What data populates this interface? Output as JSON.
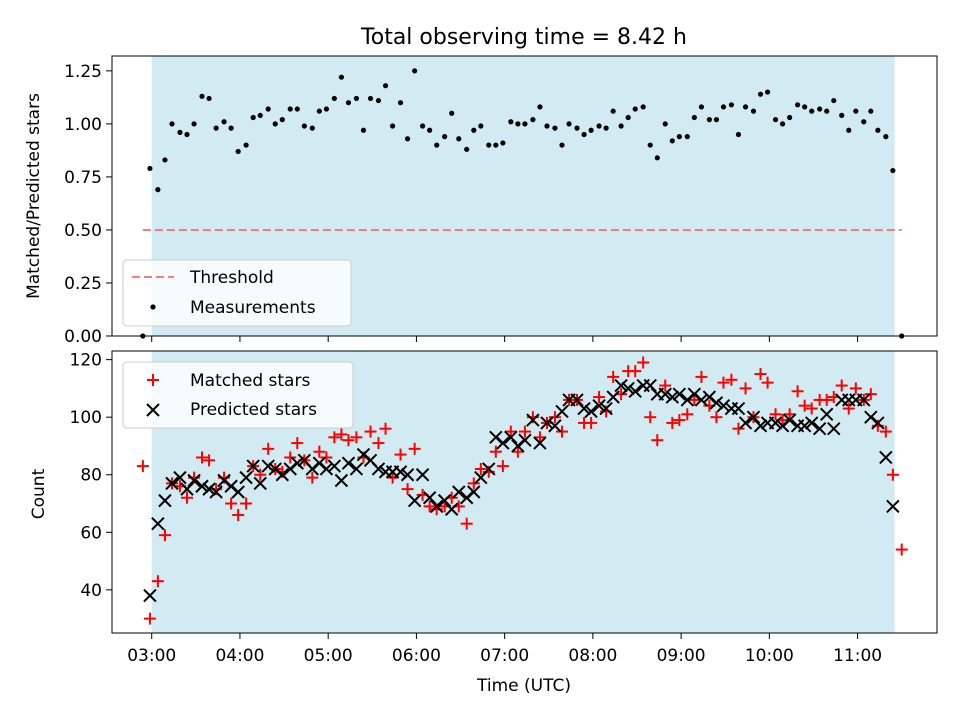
{
  "chart_data": [
    {
      "type": "scatter",
      "title": "Total observing time = 8.42 h",
      "ylabel": "Matched/Predicted stars",
      "xlabel": "",
      "xlim": [
        2.55,
        11.9
      ],
      "ylim": [
        0,
        1.32
      ],
      "yticks": [
        0.0,
        0.25,
        0.5,
        0.75,
        1.0,
        1.25
      ],
      "ytick_labels": [
        "0.00",
        "0.25",
        "0.50",
        "0.75",
        "1.00",
        "1.25"
      ],
      "observing_window": [
        3.0,
        11.42
      ],
      "legend_position": "lower-left",
      "threshold": {
        "name": "Threshold",
        "y": 0.5,
        "x_range": [
          2.9,
          11.5
        ],
        "color": "#f08080"
      },
      "series": [
        {
          "name": "Measurements",
          "marker": "dot",
          "color": "#000000",
          "x": [
            2.9,
            2.98,
            3.07,
            3.15,
            3.23,
            3.32,
            3.4,
            3.48,
            3.57,
            3.65,
            3.73,
            3.82,
            3.9,
            3.98,
            4.07,
            4.15,
            4.23,
            4.32,
            4.4,
            4.48,
            4.57,
            4.65,
            4.73,
            4.82,
            4.9,
            4.98,
            5.07,
            5.15,
            5.23,
            5.32,
            5.4,
            5.48,
            5.57,
            5.65,
            5.73,
            5.82,
            5.9,
            5.98,
            6.07,
            6.15,
            6.23,
            6.32,
            6.4,
            6.48,
            6.57,
            6.65,
            6.73,
            6.82,
            6.9,
            6.98,
            7.07,
            7.15,
            7.23,
            7.32,
            7.4,
            7.48,
            7.57,
            7.65,
            7.73,
            7.82,
            7.9,
            7.98,
            8.07,
            8.15,
            8.23,
            8.32,
            8.4,
            8.48,
            8.57,
            8.65,
            8.73,
            8.82,
            8.9,
            8.98,
            9.07,
            9.15,
            9.23,
            9.32,
            9.4,
            9.48,
            9.57,
            9.65,
            9.73,
            9.82,
            9.9,
            9.98,
            10.07,
            10.15,
            10.23,
            10.32,
            10.4,
            10.48,
            10.57,
            10.65,
            10.73,
            10.82,
            10.9,
            10.98,
            11.07,
            11.15,
            11.23,
            11.32,
            11.4,
            11.5
          ],
          "y": [
            0.0,
            0.79,
            0.69,
            0.83,
            1.0,
            0.96,
            0.95,
            1.0,
            1.13,
            1.12,
            0.98,
            1.01,
            0.98,
            0.87,
            0.9,
            1.03,
            1.04,
            1.07,
            1.0,
            1.02,
            1.07,
            1.07,
            0.99,
            0.98,
            1.06,
            1.07,
            1.12,
            1.22,
            1.1,
            1.12,
            0.97,
            1.12,
            1.11,
            1.18,
            0.99,
            1.1,
            0.93,
            1.25,
            0.99,
            0.97,
            0.9,
            0.94,
            1.05,
            0.93,
            0.88,
            0.97,
            0.99,
            0.9,
            0.9,
            0.91,
            1.01,
            1.0,
            1.0,
            1.02,
            1.08,
            0.99,
            0.98,
            0.9,
            1.0,
            0.98,
            0.95,
            0.97,
            0.99,
            0.98,
            1.06,
            0.99,
            1.03,
            1.07,
            1.08,
            0.9,
            0.84,
            1.0,
            0.92,
            0.94,
            0.94,
            1.03,
            1.08,
            1.02,
            1.02,
            1.08,
            1.09,
            0.95,
            1.08,
            1.06,
            1.14,
            1.15,
            1.02,
            1.0,
            1.03,
            1.09,
            1.08,
            1.06,
            1.07,
            1.06,
            1.11,
            1.04,
            0.97,
            1.06,
            1.01,
            1.06,
            0.97,
            0.94,
            0.78,
            0.0
          ]
        }
      ]
    },
    {
      "type": "scatter",
      "title": "",
      "xlabel": "Time (UTC)",
      "ylabel": "Count",
      "xlim": [
        2.55,
        11.9
      ],
      "ylim": [
        25,
        123
      ],
      "yticks": [
        40,
        60,
        80,
        100,
        120
      ],
      "ytick_labels": [
        "40",
        "60",
        "80",
        "100",
        "120"
      ],
      "xticks": [
        3,
        4,
        5,
        6,
        7,
        8,
        9,
        10,
        11
      ],
      "xtick_labels": [
        "03:00",
        "04:00",
        "05:00",
        "06:00",
        "07:00",
        "08:00",
        "09:00",
        "10:00",
        "11:00"
      ],
      "observing_window": [
        3.0,
        11.42
      ],
      "legend_position": "upper-left",
      "series": [
        {
          "name": "Matched stars",
          "marker": "plus",
          "color": "#ff0000",
          "x": [
            2.9,
            2.98,
            3.07,
            3.15,
            3.23,
            3.32,
            3.4,
            3.48,
            3.57,
            3.65,
            3.73,
            3.82,
            3.9,
            3.98,
            4.07,
            4.15,
            4.23,
            4.32,
            4.4,
            4.48,
            4.57,
            4.65,
            4.73,
            4.82,
            4.9,
            4.98,
            5.07,
            5.15,
            5.23,
            5.32,
            5.4,
            5.48,
            5.57,
            5.65,
            5.73,
            5.82,
            5.9,
            5.98,
            6.07,
            6.15,
            6.23,
            6.32,
            6.4,
            6.48,
            6.57,
            6.65,
            6.73,
            6.82,
            6.9,
            6.98,
            7.07,
            7.15,
            7.23,
            7.32,
            7.4,
            7.48,
            7.57,
            7.65,
            7.73,
            7.82,
            7.9,
            7.98,
            8.07,
            8.15,
            8.23,
            8.32,
            8.4,
            8.48,
            8.57,
            8.65,
            8.73,
            8.82,
            8.9,
            8.98,
            9.07,
            9.15,
            9.23,
            9.32,
            9.4,
            9.48,
            9.57,
            9.65,
            9.73,
            9.82,
            9.9,
            9.98,
            10.07,
            10.15,
            10.23,
            10.32,
            10.4,
            10.48,
            10.57,
            10.65,
            10.73,
            10.82,
            10.9,
            10.98,
            11.07,
            11.15,
            11.23,
            11.32,
            11.4,
            11.5
          ],
          "y": [
            83,
            30,
            43,
            59,
            77,
            76,
            72,
            79,
            86,
            85,
            75,
            79,
            70,
            66,
            70,
            83,
            80,
            89,
            82,
            81,
            86,
            91,
            85,
            79,
            88,
            86,
            93,
            94,
            92,
            93,
            86,
            95,
            91,
            96,
            79,
            87,
            75,
            89,
            73,
            69,
            68,
            69,
            72,
            69,
            63,
            77,
            82,
            81,
            88,
            83,
            95,
            88,
            95,
            100,
            93,
            98,
            100,
            95,
            106,
            106,
            98,
            98,
            107,
            102,
            114,
            108,
            116,
            116,
            119,
            100,
            92,
            111,
            98,
            99,
            101,
            106,
            114,
            104,
            100,
            112,
            113,
            96,
            110,
            100,
            115,
            112,
            101,
            99,
            101,
            109,
            104,
            103,
            106,
            106,
            107,
            111,
            103,
            110,
            106,
            108,
            97,
            95,
            80,
            54
          ]
        },
        {
          "name": "Predicted stars",
          "marker": "x",
          "color": "#000000",
          "x": [
            2.98,
            3.07,
            3.15,
            3.23,
            3.32,
            3.4,
            3.48,
            3.57,
            3.65,
            3.73,
            3.82,
            3.9,
            3.98,
            4.07,
            4.15,
            4.23,
            4.32,
            4.4,
            4.48,
            4.57,
            4.65,
            4.73,
            4.82,
            4.9,
            4.98,
            5.07,
            5.15,
            5.23,
            5.32,
            5.4,
            5.48,
            5.57,
            5.65,
            5.73,
            5.82,
            5.9,
            5.98,
            6.07,
            6.15,
            6.23,
            6.32,
            6.4,
            6.48,
            6.57,
            6.65,
            6.73,
            6.82,
            6.9,
            6.98,
            7.07,
            7.15,
            7.23,
            7.32,
            7.4,
            7.48,
            7.57,
            7.65,
            7.73,
            7.82,
            7.9,
            7.98,
            8.07,
            8.15,
            8.23,
            8.32,
            8.4,
            8.48,
            8.57,
            8.65,
            8.73,
            8.82,
            8.9,
            8.98,
            9.07,
            9.15,
            9.23,
            9.32,
            9.4,
            9.48,
            9.57,
            9.65,
            9.73,
            9.82,
            9.9,
            9.98,
            10.07,
            10.15,
            10.23,
            10.32,
            10.4,
            10.48,
            10.57,
            10.65,
            10.73,
            10.82,
            10.9,
            10.98,
            11.07,
            11.15,
            11.23,
            11.32,
            11.4
          ],
          "y": [
            38,
            63,
            71,
            77,
            79,
            75,
            78,
            76,
            75,
            74,
            78,
            76,
            74,
            79,
            83,
            77,
            83,
            82,
            80,
            82,
            84,
            85,
            82,
            84,
            82,
            83,
            78,
            84,
            82,
            87,
            85,
            82,
            81,
            81,
            81,
            80,
            71,
            80,
            72,
            69,
            71,
            68,
            74,
            72,
            74,
            79,
            82,
            93,
            91,
            93,
            90,
            92,
            99,
            91,
            98,
            97,
            102,
            106,
            106,
            103,
            102,
            104,
            103,
            107,
            111,
            110,
            109,
            111,
            111,
            108,
            108,
            107,
            108,
            106,
            108,
            106,
            107,
            105,
            104,
            103,
            103,
            98,
            100,
            97,
            98,
            98,
            97,
            99,
            97,
            97,
            98,
            96,
            101,
            96,
            106,
            106,
            106,
            106,
            100,
            98,
            86,
            69
          ]
        }
      ]
    }
  ],
  "colors": {
    "observing_window_fill": "#add8e6",
    "threshold": "#f08080",
    "measurements": "#000000",
    "matched": "#ff0000",
    "predicted": "#000000"
  }
}
